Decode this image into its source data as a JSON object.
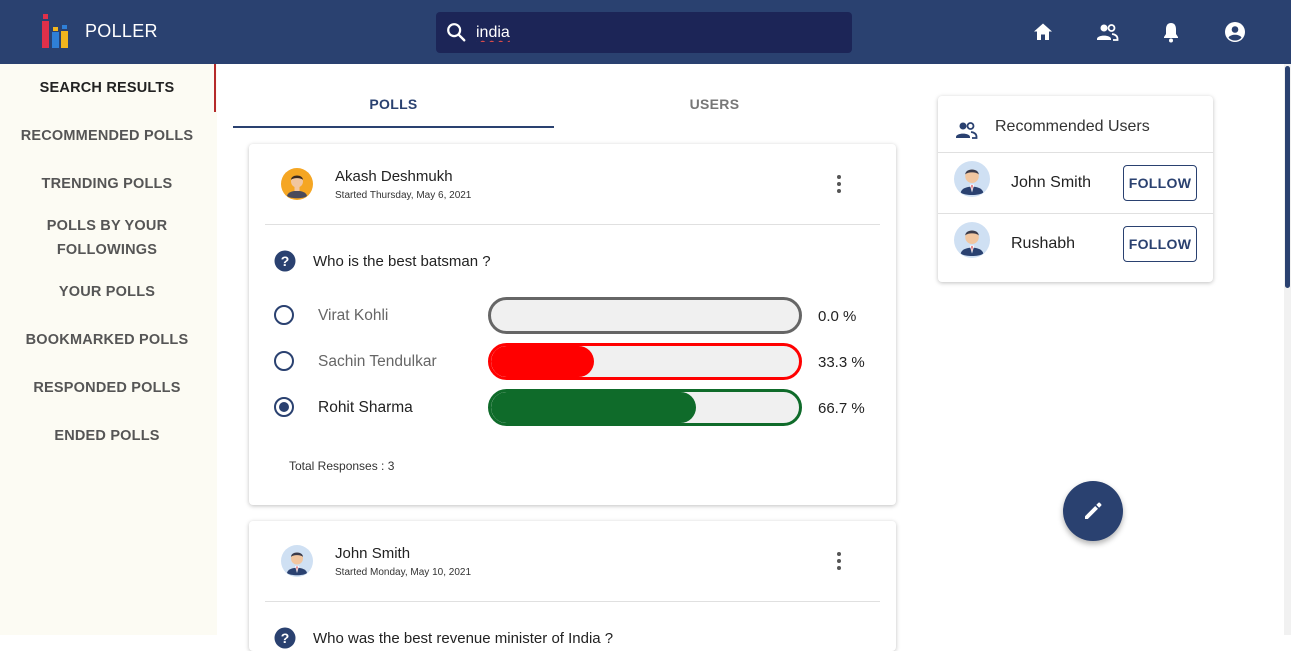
{
  "app": {
    "name": "POLLER",
    "colors": {
      "primary": "#2a4170",
      "search_bg": "#1c2557",
      "red": "#ff0000",
      "green": "#0f6b2a",
      "sidebar_bg": "#fcfbf3"
    }
  },
  "search": {
    "value": "india",
    "placeholder": ""
  },
  "topnav": [
    "home-icon",
    "people-icon",
    "notifications-icon",
    "account-icon"
  ],
  "sidebar": {
    "items": [
      {
        "label": "SEARCH RESULTS",
        "active": true
      },
      {
        "label": "RECOMMENDED POLLS"
      },
      {
        "label": "TRENDING POLLS"
      },
      {
        "label": "POLLS BY YOUR FOLLOWINGS"
      },
      {
        "label": "YOUR POLLS"
      },
      {
        "label": "BOOKMARKED POLLS"
      },
      {
        "label": "RESPONDED POLLS"
      },
      {
        "label": "ENDED POLLS"
      }
    ],
    "followings_line1": "POLLS BY YOUR",
    "followings_line2": "FOLLOWINGS"
  },
  "tabs": [
    {
      "label": "POLLS",
      "active": true
    },
    {
      "label": "USERS"
    }
  ],
  "polls": [
    {
      "author": "Akash Deshmukh",
      "started": "Started Thursday, May 6, 2021",
      "question": "Who is the best batsman ?",
      "options": [
        {
          "label": "Virat Kohli",
          "percent_text": "0.0 %",
          "percent": 0,
          "color": "#666666",
          "selected": false
        },
        {
          "label": "Sachin Tendulkar",
          "percent_text": "33.3 %",
          "percent": 33.3,
          "color": "#ff0000",
          "selected": false
        },
        {
          "label": "Rohit Sharma",
          "percent_text": "66.7 %",
          "percent": 66.7,
          "color": "#0f6b2a",
          "selected": true
        }
      ],
      "total": "Total Responses : 3"
    },
    {
      "author": "John Smith",
      "started": "Started Monday, May 10, 2021",
      "question": "Who was the best revenue minister of India ?"
    }
  ],
  "recommended": {
    "title": "Recommended Users",
    "users": [
      {
        "name": "John Smith",
        "button": "FOLLOW"
      },
      {
        "name": "Rushabh",
        "button": "FOLLOW"
      }
    ]
  },
  "fab": {
    "icon": "edit-icon"
  }
}
